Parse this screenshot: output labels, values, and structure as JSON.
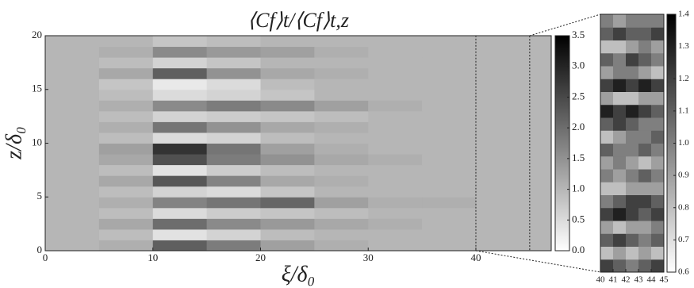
{
  "chart_data": [
    {
      "type": "heatmap",
      "title": "⟨Cf⟩t/⟨Cf⟩t,z",
      "x_label": "ξ/δ₀",
      "y_label": "z/δ₀",
      "xlim": [
        0,
        47
      ],
      "ylim": [
        0,
        20
      ],
      "xticks": [
        0,
        10,
        20,
        30,
        40
      ],
      "yticks": [
        0,
        5,
        10,
        15,
        20
      ],
      "x_edges": [
        0,
        5,
        10,
        15,
        20,
        25,
        30,
        35,
        40,
        47
      ],
      "y_edges": [
        0,
        1,
        2,
        3,
        4,
        5,
        6,
        7,
        8,
        9,
        10,
        11,
        12,
        13,
        14,
        15,
        16,
        17,
        18,
        19,
        20
      ],
      "values": [
        [
          1.0,
          1.1,
          2.2,
          1.8,
          1.3,
          1.1,
          1.0,
          1.0,
          1.0
        ],
        [
          1.0,
          0.9,
          0.4,
          0.6,
          0.9,
          1.0,
          1.0,
          1.0,
          1.0
        ],
        [
          1.0,
          1.2,
          2.0,
          1.6,
          1.4,
          1.2,
          1.1,
          1.0,
          1.0
        ],
        [
          1.0,
          0.9,
          0.5,
          0.7,
          0.8,
          0.9,
          1.0,
          1.0,
          1.0
        ],
        [
          1.0,
          1.1,
          1.7,
          1.9,
          2.1,
          1.3,
          1.1,
          1.1,
          1.0
        ],
        [
          1.0,
          0.9,
          0.6,
          0.5,
          0.8,
          1.0,
          1.0,
          1.0,
          1.0
        ],
        [
          1.0,
          1.2,
          2.3,
          1.7,
          1.2,
          1.1,
          1.0,
          1.0,
          1.0
        ],
        [
          1.0,
          0.9,
          0.4,
          0.7,
          0.9,
          1.0,
          1.0,
          1.0,
          1.0
        ],
        [
          1.0,
          1.2,
          2.4,
          1.8,
          1.5,
          1.2,
          1.1,
          1.0,
          1.0
        ],
        [
          1.0,
          1.3,
          2.8,
          1.9,
          1.3,
          1.1,
          1.0,
          1.0,
          1.0
        ],
        [
          1.0,
          0.9,
          0.5,
          0.6,
          0.9,
          1.0,
          1.0,
          1.0,
          1.0
        ],
        [
          1.0,
          1.1,
          1.9,
          1.5,
          1.2,
          1.1,
          1.0,
          1.0,
          1.0
        ],
        [
          1.0,
          0.9,
          0.6,
          0.7,
          0.8,
          0.9,
          1.0,
          1.0,
          1.0
        ],
        [
          1.0,
          1.1,
          1.6,
          1.8,
          1.6,
          1.3,
          1.1,
          1.0,
          1.0
        ],
        [
          1.0,
          0.9,
          0.5,
          0.6,
          0.8,
          1.0,
          1.0,
          1.0,
          1.0
        ],
        [
          1.0,
          0.8,
          0.3,
          0.5,
          0.9,
          1.0,
          1.0,
          1.0,
          1.0
        ],
        [
          1.0,
          1.2,
          2.2,
          1.5,
          1.2,
          1.1,
          1.0,
          1.0,
          1.0
        ],
        [
          1.0,
          0.9,
          0.6,
          0.8,
          1.0,
          1.0,
          1.0,
          1.0,
          1.0
        ],
        [
          1.0,
          1.1,
          1.6,
          1.4,
          1.3,
          1.1,
          1.0,
          1.0,
          1.0
        ],
        [
          1.0,
          1.0,
          0.8,
          0.9,
          1.0,
          1.0,
          1.0,
          1.0,
          1.0
        ]
      ],
      "clim": [
        0,
        3.5
      ],
      "cticks": [
        {
          "value": 0,
          "label": "0.0"
        },
        0.5,
        {
          "value": 1,
          "label": "1.0"
        },
        1.5,
        {
          "value": 2,
          "label": "2.0"
        },
        2.5,
        {
          "value": 3,
          "label": "3.0"
        },
        3.5
      ]
    },
    {
      "type": "heatmap",
      "xlim": [
        40,
        45
      ],
      "ylim": [
        0,
        20
      ],
      "xticks": [
        40,
        41,
        42,
        43,
        44,
        45
      ],
      "x_edges": [
        40,
        41,
        42,
        43,
        44,
        45
      ],
      "y_edges": [
        0,
        1,
        2,
        3,
        4,
        5,
        6,
        7,
        8,
        9,
        10,
        11,
        12,
        13,
        14,
        15,
        16,
        17,
        18,
        19,
        20
      ],
      "values": [
        [
          1.2,
          1.1,
          1.0,
          1.1,
          1.2
        ],
        [
          0.8,
          0.9,
          0.8,
          0.9,
          0.8
        ],
        [
          1.1,
          1.2,
          1.1,
          1.0,
          1.1
        ],
        [
          0.9,
          0.8,
          0.9,
          0.9,
          1.0
        ],
        [
          1.2,
          1.3,
          1.2,
          1.1,
          1.2
        ],
        [
          1.0,
          1.1,
          1.2,
          1.2,
          1.1
        ],
        [
          0.8,
          0.8,
          0.9,
          0.9,
          0.9
        ],
        [
          1.0,
          0.9,
          1.0,
          1.1,
          1.0
        ],
        [
          0.9,
          1.0,
          0.9,
          0.8,
          0.9
        ],
        [
          1.1,
          1.0,
          1.0,
          1.1,
          1.0
        ],
        [
          0.8,
          0.9,
          1.0,
          1.0,
          1.1
        ],
        [
          1.1,
          1.2,
          1.1,
          1.0,
          1.0
        ],
        [
          1.3,
          1.2,
          1.3,
          1.2,
          1.1
        ],
        [
          0.9,
          0.8,
          0.8,
          0.9,
          0.9
        ],
        [
          1.2,
          1.3,
          1.2,
          1.3,
          1.2
        ],
        [
          0.9,
          1.0,
          1.0,
          0.9,
          0.8
        ],
        [
          1.1,
          1.0,
          1.2,
          1.1,
          1.0
        ],
        [
          0.8,
          0.8,
          0.9,
          1.0,
          0.9
        ],
        [
          1.1,
          1.2,
          1.1,
          1.1,
          1.2
        ],
        [
          1.0,
          0.9,
          1.0,
          1.0,
          1.0
        ]
      ],
      "clim": [
        0.6,
        1.4
      ],
      "cticks": [
        0.6,
        0.7,
        0.8,
        0.9,
        {
          "value": 1,
          "label": "1.0"
        },
        1.1,
        1.2,
        1.3,
        1.4
      ]
    }
  ]
}
